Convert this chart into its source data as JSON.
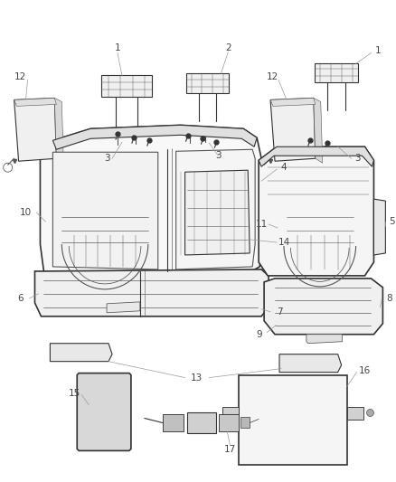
{
  "bg_color": "#ffffff",
  "line_color": "#555555",
  "dark_line": "#333333",
  "label_color": "#444444",
  "fig_width": 4.38,
  "fig_height": 5.33,
  "dpi": 100
}
